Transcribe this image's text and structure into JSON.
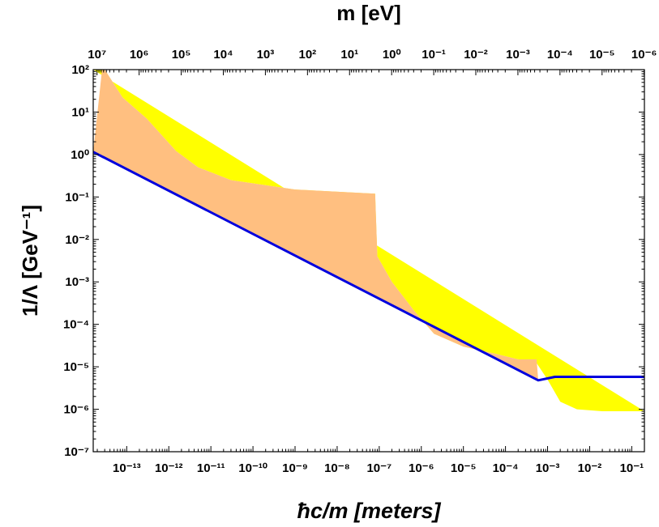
{
  "chart_data": {
    "type": "area",
    "xlabel": "ħc/m [meters]",
    "top_xlabel": "m [eV]",
    "ylabel": "1/Λ [GeV⁻¹]",
    "x_scale": "log",
    "y_scale": "log",
    "xlim": [
      1.6e-14,
      0.2
    ],
    "ylim": [
      1e-07,
      100
    ],
    "x_ticks": [
      {
        "value": 1e-13,
        "label": "10⁻¹³"
      },
      {
        "value": 1e-12,
        "label": "10⁻¹²"
      },
      {
        "value": 1e-11,
        "label": "10⁻¹¹"
      },
      {
        "value": 1e-10,
        "label": "10⁻¹⁰"
      },
      {
        "value": 1e-09,
        "label": "10⁻⁹"
      },
      {
        "value": 1e-08,
        "label": "10⁻⁸"
      },
      {
        "value": 1e-07,
        "label": "10⁻⁷"
      },
      {
        "value": 1e-06,
        "label": "10⁻⁶"
      },
      {
        "value": 1e-05,
        "label": "10⁻⁵"
      },
      {
        "value": 0.0001,
        "label": "10⁻⁴"
      },
      {
        "value": 0.001,
        "label": "10⁻³"
      },
      {
        "value": 0.01,
        "label": "10⁻²"
      },
      {
        "value": 0.1,
        "label": "10⁻¹"
      }
    ],
    "top_ticks": [
      {
        "value": 10000000.0,
        "label": "10⁷"
      },
      {
        "value": 1000000.0,
        "label": "10⁶"
      },
      {
        "value": 100000.0,
        "label": "10⁵"
      },
      {
        "value": 10000.0,
        "label": "10⁴"
      },
      {
        "value": 1000.0,
        "label": "10³"
      },
      {
        "value": 100.0,
        "label": "10²"
      },
      {
        "value": 10.0,
        "label": "10¹"
      },
      {
        "value": 1.0,
        "label": "10⁰"
      },
      {
        "value": 0.1,
        "label": "10⁻¹"
      },
      {
        "value": 0.01,
        "label": "10⁻²"
      },
      {
        "value": 0.001,
        "label": "10⁻³"
      },
      {
        "value": 0.0001,
        "label": "10⁻⁴"
      },
      {
        "value": 1e-05,
        "label": "10⁻⁵"
      },
      {
        "value": 1e-06,
        "label": "10⁻⁶"
      }
    ],
    "y_ticks": [
      {
        "value": 100.0,
        "label": "10²"
      },
      {
        "value": 10.0,
        "label": "10¹"
      },
      {
        "value": 1.0,
        "label": "10⁰"
      },
      {
        "value": 0.1,
        "label": "10⁻¹"
      },
      {
        "value": 0.01,
        "label": "10⁻²"
      },
      {
        "value": 0.001,
        "label": "10⁻³"
      },
      {
        "value": 0.0001,
        "label": "10⁻⁴"
      },
      {
        "value": 1e-05,
        "label": "10⁻⁵"
      },
      {
        "value": 1e-06,
        "label": "10⁻⁶"
      },
      {
        "value": 1e-07,
        "label": "10⁻⁷"
      }
    ],
    "series": [
      {
        "color": "#ffff00",
        "points": [
          [
            1.6e-14,
            100
          ],
          [
            3e-14,
            100
          ],
          [
            8e-14,
            22
          ],
          [
            3e-13,
            7
          ],
          [
            1.5e-12,
            1.2
          ],
          [
            5e-12,
            0.5
          ],
          [
            3e-11,
            0.25
          ],
          [
            1e-09,
            0.15
          ],
          [
            8e-08,
            0.12
          ],
          [
            9e-08,
            0.004
          ],
          [
            2e-07,
            0.001
          ],
          [
            7e-07,
            0.0002
          ],
          [
            2e-06,
            6e-05
          ],
          [
            1e-05,
            3e-05
          ],
          [
            6e-05,
            2e-05
          ],
          [
            0.0002,
            1.5e-05
          ],
          [
            0.0005,
            1.4e-05
          ],
          [
            0.001,
            5e-06
          ],
          [
            0.002,
            1.5e-06
          ],
          [
            0.005,
            1e-06
          ],
          [
            0.02,
            9e-07
          ],
          [
            0.2,
            9e-07
          ]
        ]
      },
      {
        "color": "#ffbf80",
        "points": [
          [
            1.6e-14,
            100
          ],
          [
            2.6e-14,
            100
          ],
          [
            1.6e-14,
            1.15
          ],
          [
            0.0006,
            4.8e-06
          ],
          [
            0.00055,
            1.5e-05
          ],
          [
            0.0002,
            1.5e-05
          ],
          [
            6e-05,
            2e-05
          ],
          [
            1e-05,
            3e-05
          ],
          [
            2e-06,
            6e-05
          ],
          [
            7e-07,
            0.0002
          ],
          [
            2e-07,
            0.001
          ],
          [
            9e-08,
            0.004
          ],
          [
            8e-08,
            0.12
          ],
          [
            1e-09,
            0.15
          ],
          [
            3e-11,
            0.25
          ],
          [
            5e-12,
            0.5
          ],
          [
            1.5e-12,
            1.2
          ],
          [
            3e-13,
            7
          ],
          [
            8e-14,
            22
          ],
          [
            3e-14,
            100
          ]
        ]
      },
      {
        "color": "#0000dd",
        "points": [
          [
            1.6e-14,
            1.15
          ],
          [
            0.0006,
            4.8e-06
          ],
          [
            0.0015,
            5.8e-06
          ],
          [
            0.2,
            5.8e-06
          ]
        ]
      }
    ]
  }
}
